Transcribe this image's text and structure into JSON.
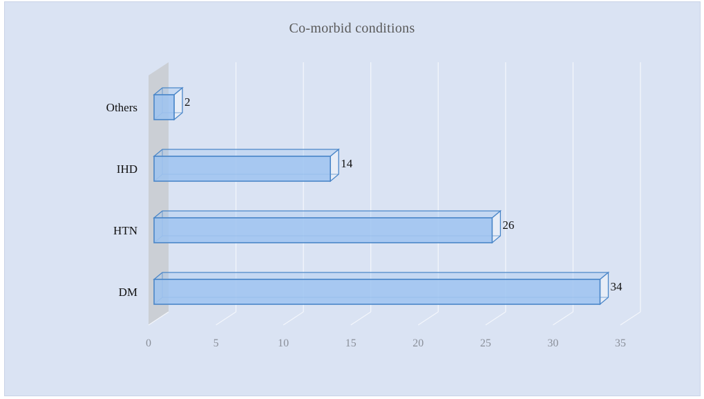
{
  "chart_data": {
    "type": "bar",
    "orientation": "horizontal",
    "style": "3d",
    "title": "Co-morbid conditions",
    "categories": [
      "DM",
      "HTN",
      "IHD",
      "Others"
    ],
    "values": [
      34,
      26,
      14,
      2
    ],
    "xlim": [
      0,
      35
    ],
    "xticks": [
      0,
      5,
      10,
      15,
      20,
      25,
      30,
      35
    ],
    "grid": true,
    "legend": "none",
    "data_labels": true,
    "colors": {
      "background": "#dae3f3",
      "bar_face": "#9dc3f0",
      "bar_edge": "#4a86c8",
      "gridline": "#f4f7fc",
      "side_wall": "#c9ccd2"
    }
  }
}
